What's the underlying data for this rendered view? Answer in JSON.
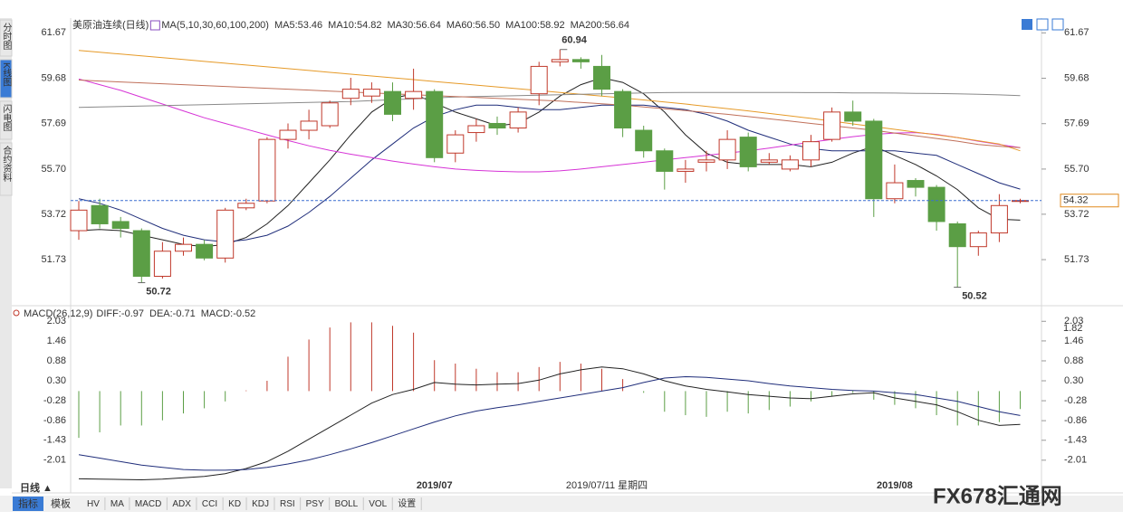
{
  "sidebar_tabs": [
    "分时图",
    "K线图",
    "闪电图",
    "合约资料"
  ],
  "chart_data": [
    {
      "type": "candlestick",
      "title": "美原油连续",
      "period": "(日线)",
      "indicator": "MA(5,10,30,60,100,200)",
      "categories": [
        null,
        null,
        null,
        null,
        null,
        null,
        null,
        null,
        null,
        null,
        null,
        null,
        null,
        null,
        null,
        null,
        null,
        "2019/07",
        null,
        null,
        null,
        null,
        null,
        null,
        null,
        null,
        null,
        null,
        null,
        null,
        null,
        null,
        null,
        null,
        null,
        null,
        null,
        null,
        null,
        "2019/08",
        null,
        null,
        null,
        null,
        null,
        null
      ],
      "crosshair_label": "2019/07/11 星期四",
      "open": [
        53.0,
        54.1,
        53.4,
        53.0,
        51.0,
        52.1,
        52.4,
        51.8,
        54.0,
        54.3,
        57.0,
        57.4,
        57.6,
        58.8,
        58.9,
        59.1,
        58.8,
        59.1,
        56.4,
        57.3,
        57.7,
        57.5,
        59.0,
        60.4,
        60.5,
        60.2,
        59.1,
        57.4,
        56.5,
        55.6,
        56.0,
        56.1,
        57.1,
        56.0,
        55.7,
        56.1,
        57.0,
        58.2,
        57.8,
        54.4,
        55.2,
        54.9,
        53.3,
        52.3,
        52.9,
        54.3
      ],
      "high": [
        54.3,
        54.4,
        53.6,
        53.1,
        52.5,
        52.7,
        52.6,
        54.0,
        54.4,
        57.1,
        57.7,
        58.3,
        58.7,
        59.7,
        59.5,
        59.5,
        60.1,
        59.2,
        57.4,
        57.9,
        58.0,
        58.4,
        60.4,
        60.94,
        60.6,
        60.7,
        59.2,
        57.6,
        56.6,
        56.1,
        56.5,
        57.4,
        57.3,
        56.4,
        56.3,
        57.2,
        58.4,
        58.7,
        57.9,
        55.9,
        55.3,
        55.0,
        53.4,
        53.0,
        54.6,
        54.4
      ],
      "low": [
        52.6,
        53.1,
        52.7,
        50.72,
        50.9,
        51.9,
        51.7,
        51.6,
        53.9,
        54.2,
        56.6,
        57.0,
        57.5,
        58.5,
        58.6,
        57.8,
        58.3,
        56.0,
        56.0,
        56.9,
        57.2,
        57.3,
        58.5,
        60.2,
        60.1,
        58.9,
        57.1,
        56.2,
        54.8,
        55.1,
        55.6,
        55.7,
        55.6,
        55.9,
        55.6,
        55.8,
        56.9,
        57.6,
        53.6,
        54.2,
        54.5,
        53.0,
        50.52,
        51.9,
        52.5,
        54.2
      ],
      "close": [
        53.9,
        53.3,
        53.1,
        51.0,
        52.1,
        52.4,
        51.8,
        53.9,
        54.2,
        57.0,
        57.4,
        57.8,
        58.6,
        59.2,
        59.2,
        58.1,
        59.1,
        56.2,
        57.2,
        57.6,
        57.5,
        58.2,
        60.2,
        60.5,
        60.4,
        59.2,
        57.5,
        56.5,
        55.6,
        55.7,
        56.1,
        57.0,
        55.8,
        56.1,
        56.1,
        56.9,
        58.2,
        57.8,
        54.4,
        55.1,
        54.9,
        53.4,
        52.3,
        52.9,
        54.1,
        54.32
      ],
      "up_color": "#c0392b",
      "down_color": "#5b9e45",
      "high_label_color": "#c0392b",
      "low_label_color": "#4a9a3a",
      "last_price_color": "#e08a1e",
      "series": [
        {
          "name": "MA5:53.46",
          "color": "#222222",
          "values": [
            53.0,
            53.05,
            53.0,
            52.8,
            52.6,
            52.4,
            52.3,
            52.4,
            52.7,
            53.3,
            54.1,
            55.1,
            56.1,
            57.2,
            58.2,
            58.8,
            59.0,
            58.6,
            58.2,
            57.9,
            57.6,
            57.7,
            58.2,
            58.9,
            59.4,
            59.7,
            59.5,
            59.0,
            58.2,
            57.2,
            56.4,
            56.0,
            55.9,
            55.9,
            55.9,
            55.8,
            56.0,
            56.4,
            56.7,
            56.3,
            55.9,
            55.4,
            54.8,
            54.0,
            53.5,
            53.46
          ]
        },
        {
          "name": "MA10:54.82",
          "color": "#1f2d7a",
          "values": [
            54.4,
            54.2,
            53.9,
            53.5,
            53.1,
            52.8,
            52.6,
            52.5,
            52.6,
            52.8,
            53.2,
            53.8,
            54.5,
            55.3,
            56.1,
            56.8,
            57.5,
            58.0,
            58.3,
            58.5,
            58.5,
            58.4,
            58.3,
            58.3,
            58.4,
            58.5,
            58.5,
            58.5,
            58.4,
            58.3,
            58.1,
            57.8,
            57.4,
            57.1,
            56.8,
            56.6,
            56.5,
            56.5,
            56.5,
            56.5,
            56.4,
            56.3,
            55.9,
            55.5,
            55.1,
            54.82
          ]
        },
        {
          "name": "MA30:56.64",
          "color": "#d633d6",
          "values": [
            59.65,
            59.4,
            59.15,
            58.85,
            58.55,
            58.25,
            57.95,
            57.7,
            57.45,
            57.2,
            56.95,
            56.72,
            56.52,
            56.35,
            56.2,
            56.05,
            55.92,
            55.8,
            55.7,
            55.64,
            55.6,
            55.58,
            55.58,
            55.62,
            55.7,
            55.8,
            55.9,
            56.0,
            56.1,
            56.2,
            56.3,
            56.4,
            56.5,
            56.62,
            56.75,
            56.88,
            57.0,
            57.12,
            57.22,
            57.28,
            57.3,
            57.22,
            57.08,
            56.92,
            56.78,
            56.64
          ]
        },
        {
          "name": "MA60:56.50",
          "color": "#e69a28",
          "values": [
            60.9,
            60.82,
            60.74,
            60.66,
            60.58,
            60.5,
            60.42,
            60.34,
            60.26,
            60.18,
            60.1,
            60.02,
            59.94,
            59.86,
            59.78,
            59.7,
            59.62,
            59.54,
            59.46,
            59.38,
            59.3,
            59.22,
            59.14,
            59.06,
            58.98,
            58.9,
            58.82,
            58.73,
            58.64,
            58.55,
            58.45,
            58.35,
            58.25,
            58.14,
            58.03,
            57.92,
            57.8,
            57.68,
            57.56,
            57.44,
            57.32,
            57.2,
            57.08,
            56.94,
            56.8,
            56.5
          ]
        },
        {
          "name": "MA100:58.92",
          "color": "#8a8a8a",
          "values": [
            58.4,
            58.42,
            58.44,
            58.46,
            58.48,
            58.5,
            58.52,
            58.54,
            58.56,
            58.58,
            58.6,
            58.62,
            58.64,
            58.66,
            58.7,
            58.74,
            58.78,
            58.82,
            58.86,
            58.88,
            58.9,
            58.92,
            58.94,
            58.96,
            58.98,
            59.0,
            59.02,
            59.04,
            59.05,
            59.06,
            59.06,
            59.06,
            59.06,
            59.06,
            59.06,
            59.05,
            59.05,
            59.04,
            59.04,
            59.03,
            59.02,
            59.01,
            59.0,
            58.98,
            58.95,
            58.92
          ]
        },
        {
          "name": "MA200:56.64",
          "color": "#c0705a",
          "values": [
            59.6,
            59.56,
            59.52,
            59.48,
            59.44,
            59.4,
            59.36,
            59.32,
            59.28,
            59.24,
            59.2,
            59.16,
            59.12,
            59.08,
            59.04,
            59.0,
            58.96,
            58.92,
            58.88,
            58.84,
            58.8,
            58.76,
            58.72,
            58.68,
            58.62,
            58.56,
            58.5,
            58.42,
            58.34,
            58.26,
            58.18,
            58.1,
            58.0,
            57.9,
            57.8,
            57.7,
            57.6,
            57.5,
            57.4,
            57.28,
            57.16,
            57.04,
            56.92,
            56.78,
            56.7,
            56.64
          ]
        }
      ],
      "ylim": [
        49.83,
        62.0
      ],
      "yticks": [
        51.73,
        53.72,
        {
          "value": 55.7,
          "label": "55.70"
        },
        57.69,
        59.68,
        61.67
      ]
    },
    {
      "type": "macd",
      "title": "MACD(26,12,9)",
      "histogram": {
        "name": "MACD:-0.52",
        "name_color": "#d633d6",
        "up_color": "#c0392b",
        "down_color": "#5b9e45",
        "values": [
          -1.36,
          -1.2,
          -1.0,
          -1.0,
          -0.85,
          -0.65,
          -0.5,
          -0.3,
          0.02,
          0.3,
          1.0,
          1.5,
          1.85,
          2.0,
          2.0,
          1.9,
          1.7,
          0.9,
          0.8,
          0.65,
          0.55,
          0.55,
          0.7,
          0.85,
          0.8,
          0.65,
          0.35,
          -0.05,
          -0.6,
          -0.7,
          -0.75,
          -0.6,
          -0.65,
          -0.55,
          -0.45,
          -0.3,
          -0.15,
          -0.05,
          -0.25,
          -0.4,
          -0.5,
          -0.7,
          -1.0,
          -1.0,
          -0.9,
          -0.52
        ]
      },
      "series": [
        {
          "name": "DIFF:-0.97",
          "color": "#222222",
          "values": [
            -2.55,
            -2.56,
            -2.57,
            -2.58,
            -2.56,
            -2.52,
            -2.48,
            -2.4,
            -2.25,
            -2.05,
            -1.75,
            -1.4,
            -1.05,
            -0.7,
            -0.35,
            -0.1,
            0.05,
            0.25,
            0.2,
            0.18,
            0.2,
            0.22,
            0.32,
            0.5,
            0.62,
            0.7,
            0.65,
            0.5,
            0.3,
            0.15,
            0.05,
            -0.02,
            -0.1,
            -0.15,
            -0.2,
            -0.22,
            -0.15,
            -0.08,
            -0.05,
            -0.2,
            -0.3,
            -0.4,
            -0.6,
            -0.85,
            -1.0,
            -0.97
          ]
        },
        {
          "name": "DEA:-0.71",
          "color": "#1f2d7a",
          "values": [
            -1.85,
            -1.95,
            -2.05,
            -2.15,
            -2.22,
            -2.28,
            -2.3,
            -2.3,
            -2.28,
            -2.22,
            -2.12,
            -2.0,
            -1.85,
            -1.68,
            -1.5,
            -1.3,
            -1.1,
            -0.9,
            -0.72,
            -0.58,
            -0.48,
            -0.4,
            -0.3,
            -0.2,
            -0.1,
            0.0,
            0.1,
            0.25,
            0.38,
            0.42,
            0.4,
            0.35,
            0.3,
            0.22,
            0.15,
            0.1,
            0.05,
            0.02,
            0.0,
            -0.05,
            -0.1,
            -0.2,
            -0.3,
            -0.45,
            -0.6,
            -0.71
          ]
        }
      ],
      "cursor_value": 1.82,
      "cursor_color": "#e08a1e",
      "ylim": [
        -2.83,
        2.3
      ],
      "yticks": [
        2.03,
        1.46,
        0.88,
        {
          "value": 0.3,
          "label": "0.30"
        },
        -0.28,
        -0.86,
        -1.43,
        -2.01
      ]
    }
  ],
  "toolbar": {
    "period": "日线 ▲",
    "tabs": [
      "指标",
      "模板"
    ],
    "buttons": [
      "HV",
      "MA",
      "MACD",
      "ADX",
      "CCI",
      "KD",
      "KDJ",
      "RSI",
      "PSY",
      "BOLL",
      "VOL",
      "设置"
    ]
  },
  "logo": "FX678汇通网"
}
